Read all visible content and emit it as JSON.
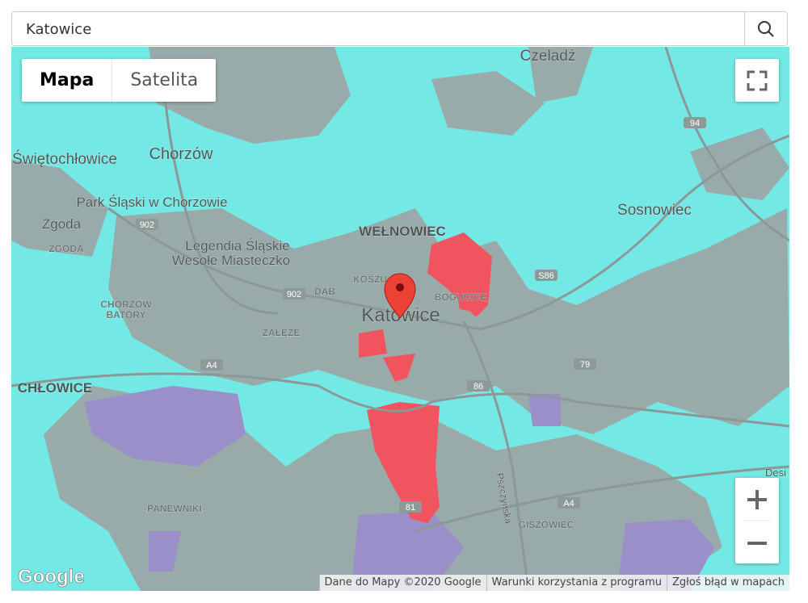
{
  "search": {
    "value": "Katowice"
  },
  "map_type": {
    "options": [
      "Mapa",
      "Satelita"
    ],
    "selected": "Mapa"
  },
  "places": [
    "Czeladź",
    "Chorzów",
    "Świętochłowice",
    "Park Śląski w Chorzowie",
    "Zgoda",
    "ZGODA",
    "Legendia Śląskie",
    "Wesołe Miasteczko",
    "WEŁNOWIEC",
    "Sosnowiec",
    "KOSZU",
    "BOGUCICE",
    "Katowice",
    "CHORZÓW",
    "BATORY",
    "ZAŁĘŻE",
    "CHŁOWICE",
    "PANEWNIKI",
    "GISZOWIEC",
    "Pszczyńska",
    "DĄB",
    "Desi"
  ],
  "roads": [
    "902",
    "902",
    "94",
    "S86",
    "79",
    "86",
    "A4",
    "A4",
    "81"
  ],
  "logo": "Google",
  "footer": [
    "Dane do Mapy ©2020 Google",
    "Warunki korzystania z programu",
    "Zgłoś błąd w mapach"
  ]
}
